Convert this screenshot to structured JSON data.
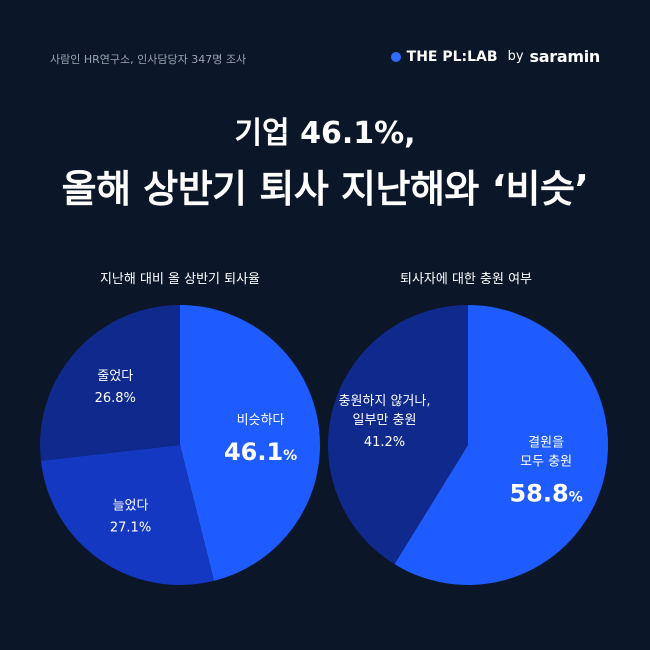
{
  "source": "사람인 HR연구소, 인사담당자 347명 조사",
  "brand": {
    "name": "THE PL:LAB",
    "by": "by",
    "partner": "saramin",
    "dot_color": "#2f6bff"
  },
  "title": {
    "line1": "기업 46.1%,",
    "line2": "올해 상반기 퇴사 지난해와 ‘비슷’"
  },
  "colors": {
    "background": "#0b1628",
    "highlight": "#1f5cff",
    "mid": "#1438c2",
    "dark": "#0f2a8c"
  },
  "chart_data": [
    {
      "type": "pie",
      "title": "지난해 대비 올 상반기 퇴사율",
      "slices": [
        {
          "label": "비슷하다",
          "value": 46.1,
          "display": "46.1",
          "unit": "%",
          "color": "#1f5cff",
          "highlight": true
        },
        {
          "label": "늘었다",
          "value": 27.1,
          "display": "27.1%",
          "color": "#1438c2"
        },
        {
          "label": "줄었다",
          "value": 26.8,
          "display": "26.8%",
          "color": "#0f2a8c"
        }
      ]
    },
    {
      "type": "pie",
      "title": "퇴사자에 대한 충원 여부",
      "slices": [
        {
          "label": "결원을\n모두 충원",
          "value": 58.8,
          "display": "58.8",
          "unit": "%",
          "color": "#1f5cff",
          "highlight": true
        },
        {
          "label": "충원하지 않거나,\n일부만 충원",
          "value": 41.2,
          "display": "41.2%",
          "color": "#0f2a8c"
        }
      ]
    }
  ]
}
